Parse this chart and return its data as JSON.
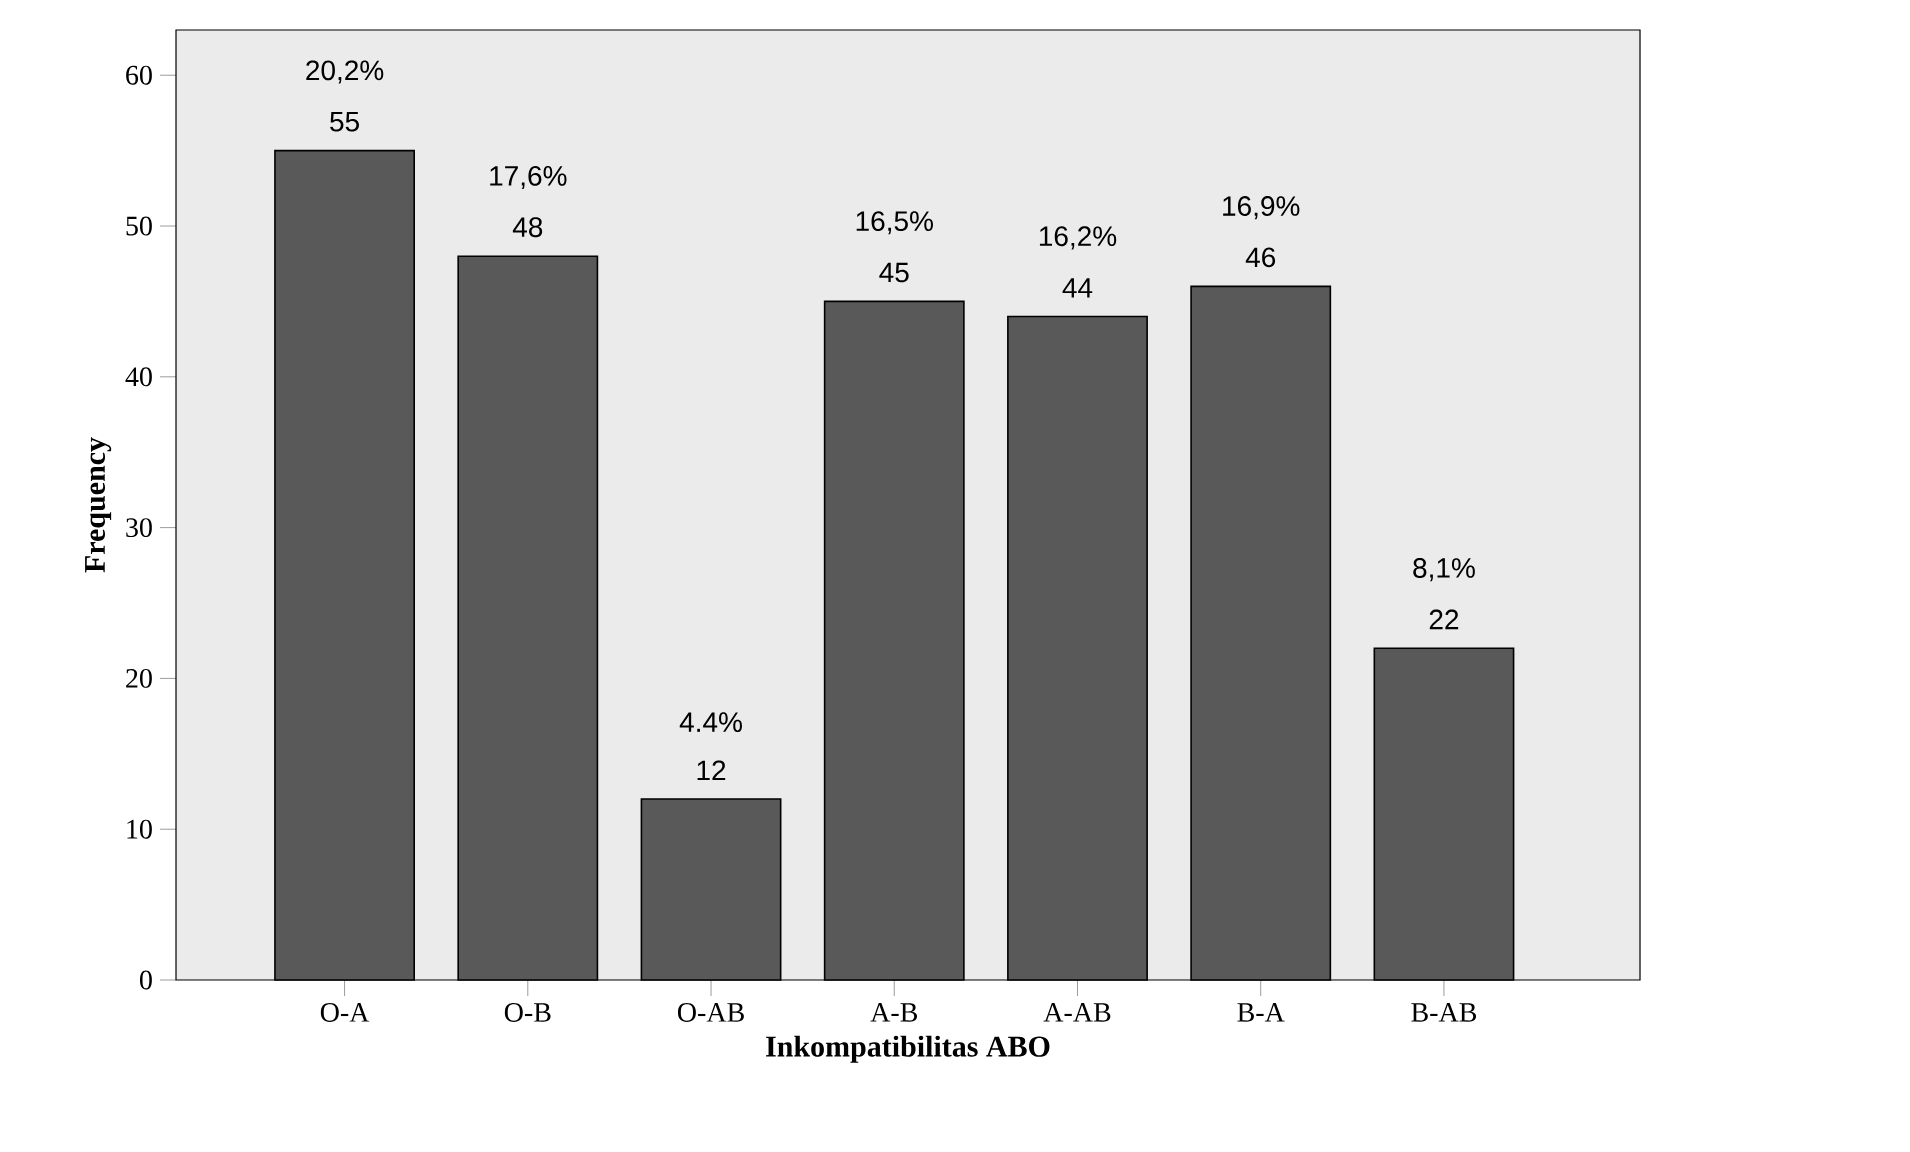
{
  "chart_data": {
    "type": "bar",
    "xlabel": "Inkompatibilitas ABO",
    "ylabel": "Frequency",
    "categories": [
      "O-A",
      "O-B",
      "O-AB",
      "A-B",
      "A-AB",
      "B-A",
      "B-AB"
    ],
    "values": [
      55,
      48,
      12,
      45,
      44,
      46,
      22
    ],
    "value_labels": [
      "55",
      "48",
      "12",
      "45",
      "44",
      "46",
      "22"
    ],
    "color": "#595959",
    "ylim": [
      0,
      63
    ],
    "yticks": [
      0,
      10,
      20,
      30,
      40,
      50,
      60
    ],
    "grid": false,
    "annotations": [
      {
        "text": "20,2%",
        "x": "O-A",
        "y": 55
      },
      {
        "text": "17,6%",
        "x": "O-B",
        "y": 48
      },
      {
        "text": "4.4%",
        "x": "O-AB",
        "y": 12
      },
      {
        "text": "16,5%",
        "x": "A-B",
        "y": 45
      },
      {
        "text": "16,2%",
        "x": "A-AB",
        "y": 44
      },
      {
        "text": "16,9%",
        "x": "B-A",
        "y": 46
      },
      {
        "text": "8,1%",
        "x": "B-AB",
        "y": 22
      }
    ]
  }
}
